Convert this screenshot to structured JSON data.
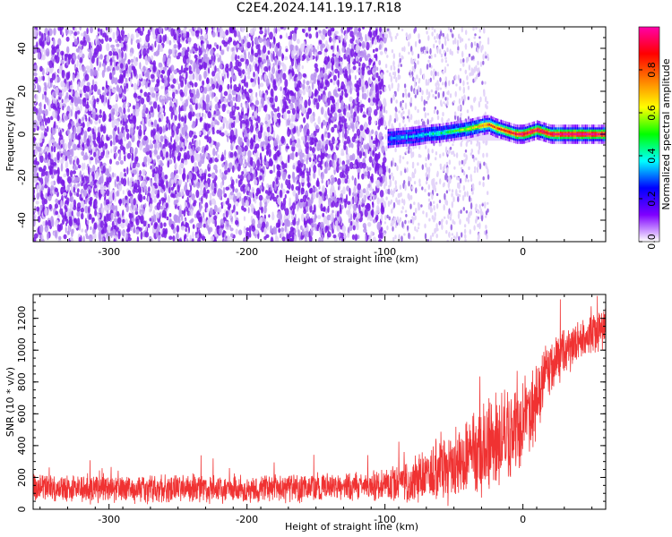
{
  "title": "C2E4.2024.141.19.17.R18",
  "colors": {
    "snr_line": "#f03232",
    "spectrogram_noise": "#7a1be6",
    "axis": "#000000"
  },
  "chart_data": [
    {
      "type": "heatmap",
      "title": "",
      "xlabel": "Height of straight line (km)",
      "ylabel": "Frequency (Hz)",
      "xlim": [
        -355,
        60
      ],
      "ylim": [
        -50,
        50
      ],
      "xticks": [
        -300,
        -200,
        -100,
        0
      ],
      "yticks": [
        -40,
        -20,
        0,
        20,
        40
      ],
      "colorbar": {
        "label": "Normalized spectral amplitude",
        "range": [
          0.0,
          1.0
        ],
        "ticks": [
          0.0,
          0.2,
          0.4,
          0.6,
          0.8
        ],
        "colormap": [
          "#ffffff",
          "#7f00ff",
          "#0000ff",
          "#00ffff",
          "#00ff00",
          "#ffff00",
          "#ff8000",
          "#ff0000",
          "#ff00aa"
        ]
      },
      "noise_region": {
        "x": [
          -355,
          -100
        ],
        "amplitude": 0.25
      },
      "signal_track": {
        "x": [
          -98,
          -90,
          -80,
          -70,
          -60,
          -50,
          -40,
          -30,
          -25,
          -20,
          -15,
          -10,
          -5,
          0,
          5,
          10,
          15,
          20,
          30,
          40,
          50,
          60
        ],
        "frequency": [
          -2,
          -1.5,
          -1,
          0,
          0.5,
          1.5,
          2.5,
          4,
          4.5,
          3,
          2,
          1,
          0,
          0,
          1,
          2,
          1,
          0,
          0,
          0,
          0,
          0
        ],
        "amplitude": [
          0.3,
          0.35,
          0.35,
          0.4,
          0.45,
          0.5,
          0.6,
          0.7,
          0.8,
          0.8,
          0.85,
          0.9,
          0.9,
          0.95,
          0.95,
          0.95,
          0.95,
          0.95,
          1.0,
          1.0,
          1.0,
          1.0
        ]
      }
    },
    {
      "type": "line",
      "title": "",
      "xlabel": "Height of straight line (km)",
      "ylabel": "SNR (10 * v/v)",
      "xlim": [
        -355,
        60
      ],
      "ylim": [
        0,
        1350
      ],
      "xticks": [
        -300,
        -200,
        -100,
        0
      ],
      "yticks": [
        0,
        200,
        400,
        600,
        800,
        1000,
        1200
      ],
      "series": [
        {
          "x": [
            -355,
            -300,
            -250,
            -200,
            -150,
            -120,
            -100,
            -90,
            -80,
            -70,
            -60,
            -50,
            -40,
            -30,
            -20,
            -10,
            -5,
            0,
            5,
            10,
            15,
            20,
            30,
            40,
            50,
            60
          ],
          "mean": [
            130,
            130,
            130,
            130,
            135,
            140,
            150,
            160,
            180,
            210,
            240,
            280,
            320,
            380,
            420,
            470,
            520,
            560,
            600,
            700,
            820,
            900,
            1000,
            1050,
            1100,
            1150
          ],
          "spread": [
            100,
            100,
            100,
            100,
            100,
            100,
            110,
            130,
            160,
            200,
            230,
            260,
            300,
            340,
            360,
            360,
            350,
            330,
            300,
            260,
            230,
            200,
            170,
            150,
            150,
            150
          ]
        }
      ]
    }
  ]
}
